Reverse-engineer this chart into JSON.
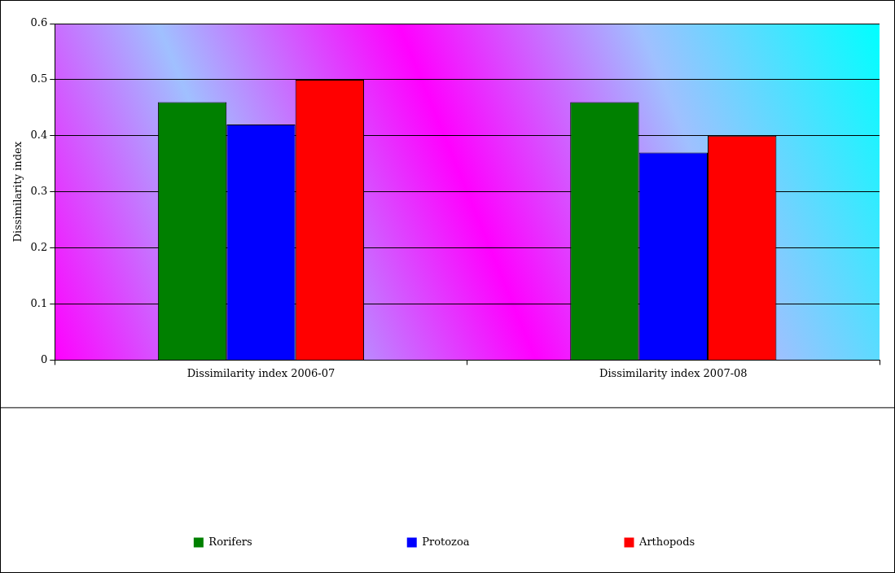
{
  "chart_data": {
    "type": "bar",
    "ylabel": "Dissimilarity index",
    "categories": [
      "Dissimilarity index 2006-07",
      "Dissimilarity index 2007-08"
    ],
    "series": [
      {
        "name": "Rorifers",
        "color": "#008000",
        "values": [
          0.46,
          0.46
        ]
      },
      {
        "name": "Protozoa",
        "color": "#0000ff",
        "values": [
          0.42,
          0.37
        ]
      },
      {
        "name": "Arthopods",
        "color": "#ff0000",
        "values": [
          0.5,
          0.4
        ]
      }
    ],
    "ylim": [
      0,
      0.6
    ],
    "yticks": [
      0,
      0.1,
      0.2,
      0.3,
      0.4,
      0.5,
      0.6
    ],
    "grid": "y",
    "legend": "bottom"
  }
}
